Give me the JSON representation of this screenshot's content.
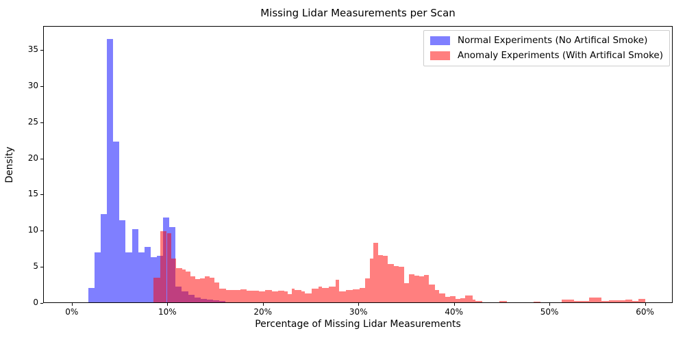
{
  "chart_data": {
    "type": "bar",
    "subtype": "overlapping-density-histogram",
    "title": "Missing Lidar Measurements per Scan",
    "xlabel": "Percentage of Missing Lidar Measurements",
    "ylabel": "Density",
    "xlim": [
      -3.0,
      62.9
    ],
    "ylim": [
      0,
      38.3
    ],
    "grid": "off",
    "legend_position": "upper right",
    "x_ticks": [
      {
        "value": 0,
        "label": "0%"
      },
      {
        "value": 10,
        "label": "10%"
      },
      {
        "value": 20,
        "label": "20%"
      },
      {
        "value": 30,
        "label": "30%"
      },
      {
        "value": 40,
        "label": "40%"
      },
      {
        "value": 50,
        "label": "50%"
      },
      {
        "value": 60,
        "label": "60%"
      }
    ],
    "y_ticks": [
      {
        "value": 0,
        "label": "0"
      },
      {
        "value": 5,
        "label": "5"
      },
      {
        "value": 10,
        "label": "10"
      },
      {
        "value": 15,
        "label": "15"
      },
      {
        "value": 20,
        "label": "20"
      },
      {
        "value": 25,
        "label": "25"
      },
      {
        "value": 30,
        "label": "30"
      },
      {
        "value": 35,
        "label": "35"
      }
    ],
    "series": [
      {
        "name": "Normal Experiments (No Artifical Smoke)",
        "color": "rgba(0,0,255,0.5)",
        "legend_swatch": "#7f7fff",
        "bars": [
          [
            1.65,
            0.655,
            2.0
          ],
          [
            2.31,
            0.655,
            6.9
          ],
          [
            2.96,
            0.655,
            12.3
          ],
          [
            3.62,
            0.655,
            36.6
          ],
          [
            4.27,
            0.655,
            22.3
          ],
          [
            4.93,
            0.655,
            11.4
          ],
          [
            5.58,
            0.655,
            6.9
          ],
          [
            6.24,
            0.655,
            10.2
          ],
          [
            6.89,
            0.655,
            6.9
          ],
          [
            7.55,
            0.655,
            7.7
          ],
          [
            8.2,
            0.655,
            6.3
          ],
          [
            8.86,
            0.655,
            6.5
          ],
          [
            9.51,
            0.655,
            11.8
          ],
          [
            10.17,
            0.655,
            10.5
          ],
          [
            10.82,
            0.655,
            2.2
          ],
          [
            11.48,
            0.655,
            1.5
          ],
          [
            12.13,
            0.655,
            1.0
          ],
          [
            12.79,
            0.655,
            0.7
          ],
          [
            13.44,
            0.655,
            0.5
          ],
          [
            14.1,
            0.655,
            0.35
          ],
          [
            14.75,
            0.655,
            0.25
          ],
          [
            15.41,
            0.655,
            0.15
          ]
        ]
      },
      {
        "name": "Anomaly Experiments (With Artifical Smoke)",
        "color": "rgba(255,0,0,0.5)",
        "legend_swatch": "#ff7f7f",
        "bars": [
          [
            8.5,
            0.7,
            3.4
          ],
          [
            9.2,
            0.7,
            9.9
          ],
          [
            9.9,
            0.5,
            9.6
          ],
          [
            10.4,
            0.5,
            6.1
          ],
          [
            10.9,
            0.6,
            4.8
          ],
          [
            11.5,
            0.4,
            4.6
          ],
          [
            11.9,
            0.5,
            4.25
          ],
          [
            12.4,
            0.5,
            3.6
          ],
          [
            12.9,
            0.5,
            3.25
          ],
          [
            13.4,
            0.5,
            3.3
          ],
          [
            13.9,
            0.5,
            3.6
          ],
          [
            14.4,
            0.5,
            3.4
          ],
          [
            14.9,
            0.5,
            2.8
          ],
          [
            15.4,
            0.7,
            1.9
          ],
          [
            16.1,
            0.9,
            1.7
          ],
          [
            17.0,
            0.6,
            1.75
          ],
          [
            17.6,
            0.7,
            1.8
          ],
          [
            18.3,
            0.7,
            1.65
          ],
          [
            19.0,
            0.6,
            1.6
          ],
          [
            19.6,
            0.6,
            1.55
          ],
          [
            20.2,
            0.7,
            1.7
          ],
          [
            20.9,
            0.7,
            1.55
          ],
          [
            21.6,
            0.6,
            1.65
          ],
          [
            22.2,
            0.4,
            1.5
          ],
          [
            22.6,
            0.4,
            1.1
          ],
          [
            23.0,
            0.3,
            1.9
          ],
          [
            23.3,
            0.7,
            1.7
          ],
          [
            24.0,
            0.4,
            1.5
          ],
          [
            24.4,
            0.7,
            1.2
          ],
          [
            25.1,
            0.7,
            1.9
          ],
          [
            25.8,
            0.4,
            2.2
          ],
          [
            26.2,
            0.7,
            2.0
          ],
          [
            26.9,
            0.7,
            2.2
          ],
          [
            27.6,
            0.4,
            3.1
          ],
          [
            28.0,
            0.7,
            1.5
          ],
          [
            28.7,
            0.7,
            1.7
          ],
          [
            29.4,
            0.7,
            1.8
          ],
          [
            30.1,
            0.6,
            2.0
          ],
          [
            30.7,
            0.5,
            3.3
          ],
          [
            31.2,
            0.4,
            6.1
          ],
          [
            31.6,
            0.5,
            8.3
          ],
          [
            32.1,
            0.5,
            6.6
          ],
          [
            32.6,
            0.5,
            6.5
          ],
          [
            33.1,
            0.6,
            5.3
          ],
          [
            33.7,
            0.5,
            5.0
          ],
          [
            34.2,
            0.6,
            4.9
          ],
          [
            34.8,
            0.5,
            2.7
          ],
          [
            35.3,
            0.6,
            3.9
          ],
          [
            35.9,
            0.5,
            3.7
          ],
          [
            36.4,
            0.5,
            3.6
          ],
          [
            36.9,
            0.5,
            3.8
          ],
          [
            37.4,
            0.6,
            2.5
          ],
          [
            38.0,
            0.5,
            1.7
          ],
          [
            38.5,
            0.6,
            1.2
          ],
          [
            39.1,
            0.5,
            0.8
          ],
          [
            39.6,
            0.6,
            0.9
          ],
          [
            40.2,
            0.5,
            0.45
          ],
          [
            40.7,
            0.5,
            0.6
          ],
          [
            41.2,
            0.8,
            0.95
          ],
          [
            42.0,
            0.3,
            0.35
          ],
          [
            42.3,
            0.7,
            0.2
          ],
          [
            44.8,
            0.8,
            0.2
          ],
          [
            48.4,
            0.7,
            0.13
          ],
          [
            51.3,
            1.3,
            0.35
          ],
          [
            52.6,
            1.6,
            0.22
          ],
          [
            54.2,
            1.3,
            0.66
          ],
          [
            55.5,
            0.8,
            0.22
          ],
          [
            56.3,
            1.7,
            0.3
          ],
          [
            58.0,
            0.7,
            0.4
          ],
          [
            58.7,
            0.7,
            0.15
          ],
          [
            59.4,
            0.7,
            0.5
          ]
        ]
      }
    ]
  }
}
